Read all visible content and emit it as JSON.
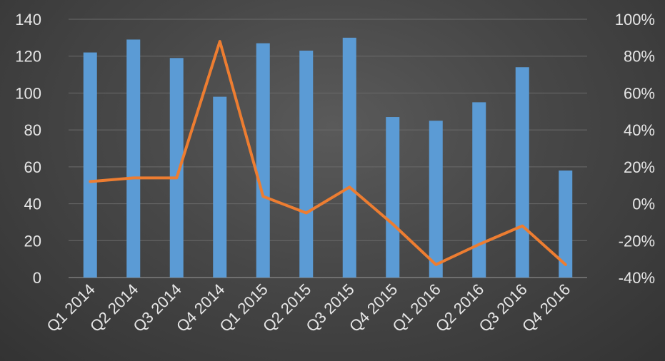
{
  "chart_data": {
    "type": "bar",
    "title": "",
    "categories": [
      "Q1 2014",
      "Q2 2014",
      "Q3 2014",
      "Q4 2014",
      "Q1 2015",
      "Q2 2015",
      "Q3 2015",
      "Q4 2015",
      "Q1 2016",
      "Q2 2016",
      "Q3 2016",
      "Q4 2016"
    ],
    "series": [
      {
        "type": "bar",
        "axis": "left",
        "values": [
          122,
          129,
          119,
          98,
          127,
          123,
          130,
          87,
          85,
          95,
          114,
          58
        ],
        "color": "#5b9bd5"
      },
      {
        "type": "line",
        "axis": "right",
        "values": [
          12,
          14,
          14,
          88,
          4,
          -5,
          9,
          -11,
          -33,
          -22,
          -12,
          -33
        ],
        "unit": "%",
        "color": "#ed7d31"
      }
    ],
    "y_left": {
      "min": 0,
      "max": 140,
      "step": 20,
      "ticks": [
        "0",
        "20",
        "40",
        "60",
        "80",
        "100",
        "120",
        "140"
      ]
    },
    "y_right": {
      "min": -40,
      "max": 100,
      "step": 20,
      "ticks": [
        "-40%",
        "-20%",
        "0%",
        "20%",
        "40%",
        "60%",
        "80%",
        "100%"
      ]
    },
    "grid": true,
    "legend": "none"
  }
}
